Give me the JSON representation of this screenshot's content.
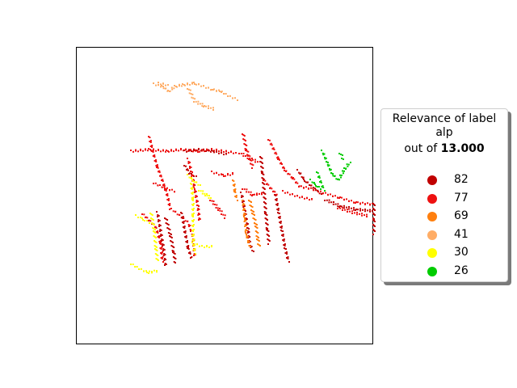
{
  "chart_data": {
    "type": "scatter",
    "title": "",
    "xlabel": "",
    "ylabel": "",
    "axes_visible": false,
    "legend": {
      "placement": "right",
      "title_line1": "Relevance of label",
      "title_line2": "alp",
      "title_line3_prefix": "out of ",
      "title_line3_value": "13.000",
      "entries": [
        {
          "label": "82",
          "color": "#c00000"
        },
        {
          "label": "77",
          "color": "#ee1111"
        },
        {
          "label": "69",
          "color": "#ff7f0e"
        },
        {
          "label": "41",
          "color": "#ffad66"
        },
        {
          "label": "30",
          "color": "#ffff00"
        },
        {
          "label": "26",
          "color": "#00cc00"
        }
      ]
    },
    "series": [
      {
        "color_key": "41",
        "strokes": [
          [
            [
              190,
              103
            ],
            [
              200,
              106
            ],
            [
              208,
              112
            ],
            [
              216,
              106
            ],
            [
              226,
              104
            ],
            [
              240,
              102
            ],
            [
              252,
              106
            ],
            [
              262,
              110
            ]
          ],
          [
            [
              232,
              108
            ],
            [
              240,
              124
            ],
            [
              252,
              130
            ],
            [
              264,
              134
            ]
          ],
          [
            [
              262,
              110
            ],
            [
              272,
              112
            ],
            [
              282,
              118
            ],
            [
              292,
              122
            ]
          ],
          [
            [
              196,
              102
            ],
            [
              206,
              104
            ]
          ]
        ]
      },
      {
        "color_key": "77",
        "strokes": [
          [
            [
              162,
              186
            ],
            [
              184,
              184
            ],
            [
              206,
              186
            ],
            [
              224,
              184
            ],
            [
              244,
              186
            ],
            [
              262,
              184
            ],
            [
              290,
              188
            ]
          ],
          [
            [
              296,
              188
            ],
            [
              310,
              196
            ],
            [
              320,
              200
            ]
          ],
          [
            [
              184,
              168
            ],
            [
              188,
              186
            ],
            [
              194,
              206
            ],
            [
              200,
              222
            ],
            [
              206,
              240
            ],
            [
              210,
              258
            ]
          ],
          [
            [
              232,
              196
            ],
            [
              236,
              212
            ],
            [
              240,
              232
            ],
            [
              244,
              254
            ],
            [
              246,
              272
            ]
          ],
          [
            [
              300,
              164
            ],
            [
              304,
              184
            ],
            [
              312,
              206
            ]
          ],
          [
            [
              332,
              172
            ],
            [
              344,
              196
            ],
            [
              352,
              210
            ],
            [
              362,
              220
            ],
            [
              370,
              230
            ],
            [
              382,
              232
            ],
            [
              400,
              238
            ],
            [
              420,
              244
            ],
            [
              440,
              250
            ],
            [
              462,
              252
            ]
          ],
          [
            [
              350,
              236
            ],
            [
              368,
              242
            ],
            [
              386,
              246
            ]
          ],
          [
            [
              418,
              256
            ],
            [
              436,
              262
            ],
            [
              454,
              266
            ]
          ],
          [
            [
              176,
              264
            ],
            [
              184,
              272
            ],
            [
              192,
              280
            ],
            [
              198,
              300
            ],
            [
              200,
              322
            ]
          ],
          [
            [
              212,
              258
            ],
            [
              222,
              266
            ],
            [
              232,
              274
            ],
            [
              238,
              292
            ],
            [
              240,
              316
            ]
          ],
          [
            [
              260,
              246
            ],
            [
              270,
              258
            ],
            [
              278,
              268
            ]
          ],
          [
            [
              190,
              226
            ],
            [
              204,
              232
            ],
            [
              216,
              236
            ]
          ],
          [
            [
              262,
              212
            ],
            [
              276,
              216
            ],
            [
              288,
              214
            ]
          ],
          [
            [
              300,
              232
            ],
            [
              312,
              240
            ],
            [
              326,
              238
            ]
          ],
          [
            [
              326,
              222
            ],
            [
              334,
              232
            ],
            [
              342,
              240
            ]
          ]
        ]
      },
      {
        "color_key": "82",
        "strokes": [
          [
            [
              228,
              186
            ],
            [
              246,
              184
            ],
            [
              262,
              186
            ],
            [
              280,
              190
            ]
          ],
          [
            [
              322,
              192
            ],
            [
              324,
              212
            ],
            [
              326,
              236
            ],
            [
              328,
              262
            ],
            [
              330,
              282
            ],
            [
              332,
              300
            ]
          ],
          [
            [
              340,
              240
            ],
            [
              344,
              262
            ],
            [
              348,
              284
            ],
            [
              352,
              306
            ],
            [
              356,
              322
            ]
          ],
          [
            [
              194,
              262
            ],
            [
              198,
              286
            ],
            [
              202,
              310
            ],
            [
              204,
              328
            ]
          ],
          [
            [
              204,
              268
            ],
            [
              210,
              290
            ],
            [
              214,
              310
            ],
            [
              216,
              324
            ]
          ],
          [
            [
              224,
              262
            ],
            [
              228,
              286
            ],
            [
              232,
              306
            ],
            [
              236,
              318
            ]
          ],
          [
            [
              368,
              210
            ],
            [
              376,
              222
            ],
            [
              388,
              232
            ],
            [
              398,
              240
            ]
          ],
          [
            [
              402,
              246
            ],
            [
              420,
              254
            ],
            [
              440,
              258
            ],
            [
              460,
              260
            ]
          ],
          [
            [
              228,
              204
            ],
            [
              234,
              214
            ],
            [
              242,
              218
            ]
          ],
          [
            [
              298,
              238
            ],
            [
              302,
              260
            ],
            [
              306,
              282
            ],
            [
              308,
              300
            ],
            [
              312,
              310
            ]
          ],
          [
            [
              462,
              250
            ],
            [
              462,
              270
            ],
            [
              462,
              288
            ]
          ]
        ]
      },
      {
        "color_key": "69",
        "strokes": [
          [
            [
              300,
              248
            ],
            [
              302,
              268
            ],
            [
              304,
              288
            ],
            [
              308,
              304
            ]
          ],
          [
            [
              308,
              246
            ],
            [
              312,
              262
            ],
            [
              316,
              278
            ],
            [
              318,
              294
            ],
            [
              320,
              304
            ]
          ],
          [
            [
              288,
              222
            ],
            [
              290,
              236
            ],
            [
              292,
              246
            ]
          ]
        ]
      },
      {
        "color_key": "30",
        "strokes": [
          [
            [
              168,
              266
            ],
            [
              176,
              270
            ],
            [
              184,
              274
            ]
          ],
          [
            [
              186,
              262
            ],
            [
              190,
              284
            ],
            [
              192,
              306
            ],
            [
              194,
              322
            ]
          ],
          [
            [
              236,
              226
            ],
            [
              238,
              246
            ],
            [
              238,
              266
            ],
            [
              238,
              290
            ],
            [
              240,
              312
            ]
          ],
          [
            [
              232,
              216
            ],
            [
              238,
              222
            ],
            [
              246,
              228
            ]
          ],
          [
            [
              246,
              234
            ],
            [
              254,
              240
            ],
            [
              260,
              244
            ]
          ],
          [
            [
              162,
              326
            ],
            [
              172,
              332
            ],
            [
              182,
              336
            ],
            [
              194,
              334
            ]
          ],
          [
            [
              238,
              300
            ],
            [
              250,
              304
            ],
            [
              262,
              304
            ]
          ]
        ]
      },
      {
        "color_key": "26",
        "strokes": [
          [
            [
              398,
              186
            ],
            [
              404,
              200
            ],
            [
              410,
              214
            ],
            [
              418,
              222
            ],
            [
              426,
              208
            ],
            [
              432,
              200
            ]
          ],
          [
            [
              420,
              188
            ],
            [
              424,
              196
            ]
          ],
          [
            [
              392,
              212
            ],
            [
              396,
              224
            ],
            [
              400,
              234
            ]
          ],
          [
            [
              384,
              222
            ],
            [
              390,
              228
            ],
            [
              396,
              232
            ]
          ]
        ]
      }
    ]
  }
}
